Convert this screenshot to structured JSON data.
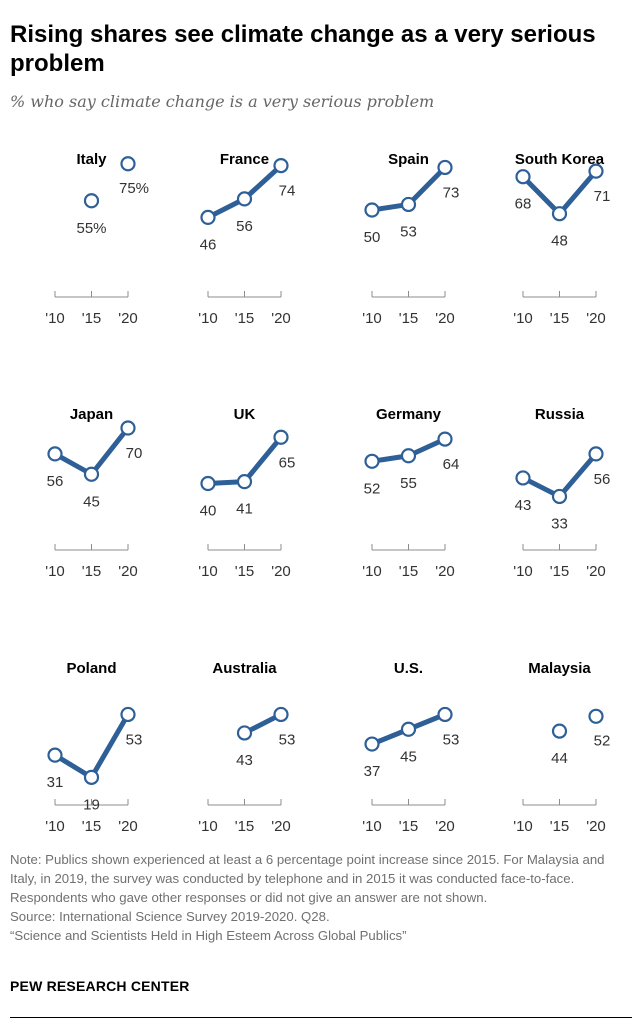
{
  "title": "Rising shares see climate change as a very serious problem",
  "subtitle": "% who say climate change is a very serious problem",
  "chart_data": {
    "type": "line",
    "x_ticks": [
      "'10",
      "'15",
      "'20"
    ],
    "x": [
      2015,
      2020
    ],
    "ylim": [
      0,
      100
    ],
    "grid": false,
    "series_color": "#2e5f97",
    "panels": [
      {
        "name": "Italy",
        "values": [
          55,
          75
        ],
        "labels": [
          "55%",
          "75%"
        ],
        "connected": false
      },
      {
        "name": "France",
        "values": [
          46,
          56,
          74
        ],
        "x": [
          2010,
          2015,
          2020
        ],
        "labels": [
          "46",
          "56",
          "74"
        ],
        "connected": true
      },
      {
        "name": "Spain",
        "values": [
          50,
          53,
          73
        ],
        "x": [
          2010,
          2015,
          2020
        ],
        "labels": [
          "50",
          "53",
          "73"
        ],
        "connected": true
      },
      {
        "name": "South Korea",
        "values": [
          68,
          48,
          71
        ],
        "x": [
          2010,
          2015,
          2020
        ],
        "labels": [
          "68",
          "48",
          "71"
        ],
        "connected": true
      },
      {
        "name": "Japan",
        "values": [
          56,
          45,
          70
        ],
        "x": [
          2010,
          2015,
          2020
        ],
        "labels": [
          "56",
          "45",
          "70"
        ],
        "connected": true
      },
      {
        "name": "UK",
        "values": [
          40,
          41,
          65
        ],
        "x": [
          2010,
          2015,
          2020
        ],
        "labels": [
          "40",
          "41",
          "65"
        ],
        "connected": true
      },
      {
        "name": "Germany",
        "values": [
          52,
          55,
          64
        ],
        "x": [
          2010,
          2015,
          2020
        ],
        "labels": [
          "52",
          "55",
          "64"
        ],
        "connected": true
      },
      {
        "name": "Russia",
        "values": [
          43,
          33,
          56
        ],
        "x": [
          2010,
          2015,
          2020
        ],
        "labels": [
          "43",
          "33",
          "56"
        ],
        "connected": true
      },
      {
        "name": "Poland",
        "values": [
          31,
          19,
          53
        ],
        "x": [
          2010,
          2015,
          2020
        ],
        "labels": [
          "31",
          "19",
          "53"
        ],
        "connected": true
      },
      {
        "name": "Australia",
        "values": [
          43,
          53
        ],
        "x": [
          2015,
          2020
        ],
        "labels": [
          "43",
          "53"
        ],
        "connected": true
      },
      {
        "name": "U.S.",
        "values": [
          37,
          45,
          53
        ],
        "x": [
          2010,
          2015,
          2020
        ],
        "labels": [
          "37",
          "45",
          "53"
        ],
        "connected": true
      },
      {
        "name": "Malaysia",
        "values": [
          44,
          52
        ],
        "x": [
          2015,
          2020
        ],
        "labels": [
          "44",
          "52"
        ],
        "connected": false
      }
    ]
  },
  "notes": {
    "note": "Note: Publics shown experienced at least a 6 percentage point increase since 2015. For Malaysia and Italy, in 2019, the survey was conducted by telephone and in 2015 it was conducted face-to-face. Respondents who gave other responses or did not give an answer are not shown.",
    "source": "Source: International Science Survey 2019-2020. Q28.",
    "report": "“Science and Scientists Held in High Esteem Across Global Publics”"
  },
  "brand": "PEW RESEARCH CENTER"
}
